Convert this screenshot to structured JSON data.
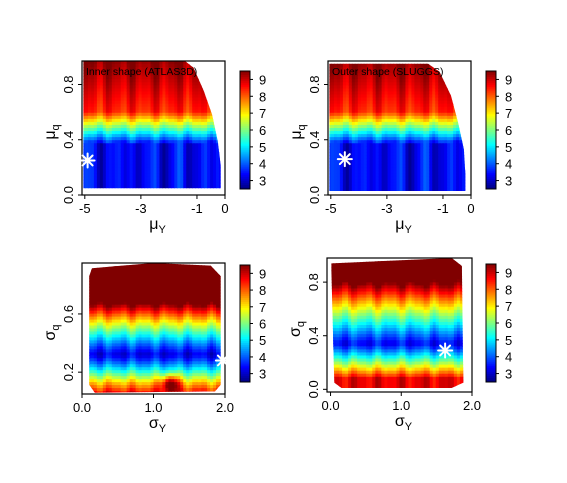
{
  "figure": {
    "colormap": [
      "#000080",
      "#0000ff",
      "#0080ff",
      "#00ffff",
      "#80ff80",
      "#ffff00",
      "#ff8000",
      "#ff0000",
      "#800000"
    ],
    "marker_color": "#ffffff"
  },
  "chart_data": [
    {
      "type": "heatmap",
      "title": "Inner shape (ATLAS3D)",
      "xlabel": "μ_Y",
      "ylabel": "μ_q",
      "x_ticks": [
        "-5",
        "-3",
        "-1",
        "0"
      ],
      "x_tick_values": [
        -5,
        -3,
        -1,
        0
      ],
      "y_ticks": [
        "0.0",
        "0.4",
        "0.8"
      ],
      "y_tick_values": [
        0.0,
        0.4,
        0.8
      ],
      "xlim": [
        -5.1,
        0.0
      ],
      "ylim": [
        0.0,
        0.97
      ],
      "colorbar": {
        "range": [
          2.5,
          9.5
        ],
        "ticks": [
          "3",
          "4",
          "5",
          "6",
          "7",
          "8",
          "9"
        ],
        "tick_values": [
          3,
          4,
          5,
          6,
          7,
          8,
          9
        ]
      },
      "valid_region": "mask-a",
      "field": "banded",
      "best_fit": {
        "x": -4.9,
        "y": 0.25
      }
    },
    {
      "type": "heatmap",
      "title": "Outer shape (SLUGGS)",
      "xlabel": "μ_Y",
      "ylabel": "μ_q",
      "x_ticks": [
        "-5",
        "-3",
        "-1",
        "0"
      ],
      "x_tick_values": [
        -5,
        -3,
        -1,
        0
      ],
      "y_ticks": [
        "0.0",
        "0.4",
        "0.8"
      ],
      "y_tick_values": [
        0.0,
        0.4,
        0.8
      ],
      "xlim": [
        -5.1,
        0.0
      ],
      "ylim": [
        0.0,
        0.97
      ],
      "colorbar": {
        "range": [
          2.5,
          9.5
        ],
        "ticks": [
          "3",
          "4",
          "5",
          "6",
          "7",
          "8",
          "9"
        ],
        "tick_values": [
          3,
          4,
          5,
          6,
          7,
          8,
          9
        ]
      },
      "valid_region": "mask-b",
      "field": "banded",
      "best_fit": {
        "x": -4.5,
        "y": 0.26
      }
    },
    {
      "type": "heatmap",
      "title": "",
      "xlabel": "σ_Y",
      "ylabel": "σ_q",
      "x_ticks": [
        "0.0",
        "1.0",
        "2.0"
      ],
      "x_tick_values": [
        0.0,
        1.0,
        2.0
      ],
      "y_ticks": [
        "0.2",
        "0.6"
      ],
      "y_tick_values": [
        0.2,
        0.6
      ],
      "xlim": [
        0.0,
        2.0
      ],
      "ylim": [
        0.05,
        0.95
      ],
      "colorbar": {
        "range": [
          2.5,
          9.5
        ],
        "ticks": [
          "3",
          "4",
          "5",
          "6",
          "7",
          "8",
          "9"
        ],
        "tick_values": [
          3,
          4,
          5,
          6,
          7,
          8,
          9
        ]
      },
      "valid_region": "mask-c",
      "field": "valley",
      "best_fit": {
        "x": 1.97,
        "y": 0.28
      }
    },
    {
      "type": "heatmap",
      "title": "",
      "xlabel": "σ_Y",
      "ylabel": "σ_q",
      "x_ticks": [
        "0.0",
        "1.0",
        "2.0"
      ],
      "x_tick_values": [
        0.0,
        1.0,
        2.0
      ],
      "y_ticks": [
        "0.0",
        "0.4",
        "0.8"
      ],
      "y_tick_values": [
        0.0,
        0.4,
        0.8
      ],
      "xlim": [
        -0.05,
        2.0
      ],
      "ylim": [
        -0.02,
        0.98
      ],
      "colorbar": {
        "range": [
          2.5,
          9.5
        ],
        "ticks": [
          "3",
          "4",
          "5",
          "6",
          "7",
          "8",
          "9"
        ],
        "tick_values": [
          3,
          4,
          5,
          6,
          7,
          8,
          9
        ]
      },
      "valid_region": "mask-d",
      "field": "valley2",
      "best_fit": {
        "x": 1.62,
        "y": 0.29
      }
    }
  ]
}
